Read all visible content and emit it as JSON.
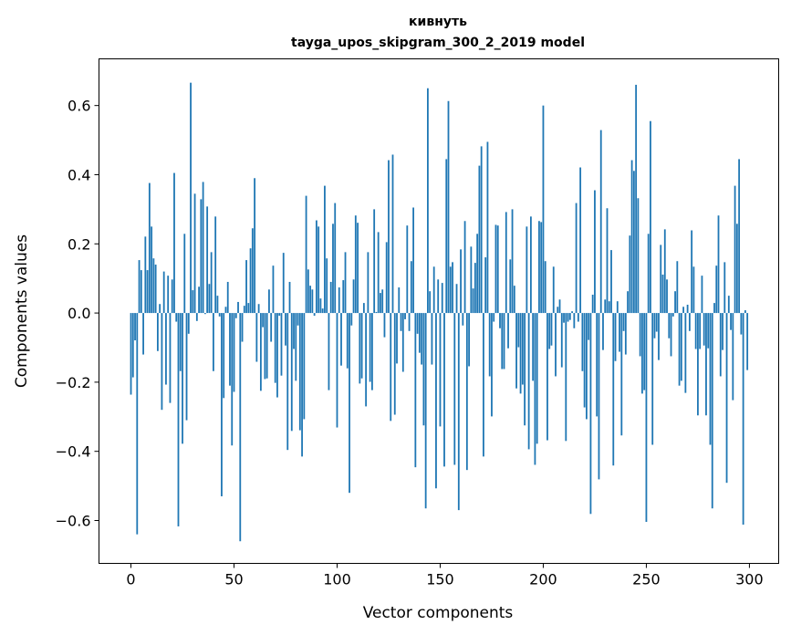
{
  "chart_data": {
    "type": "bar",
    "title_line1": "кивнуть",
    "title_line2": "tayga_upos_skipgram_300_2_2019 model",
    "xlabel": "Vector components",
    "ylabel": "Components values",
    "xlim": [
      -15.5,
      314.2
    ],
    "ylim": [
      -0.724,
      0.735
    ],
    "xticks": [
      0,
      50,
      100,
      150,
      200,
      250,
      300
    ],
    "xtick_labels": [
      "0",
      "50",
      "100",
      "150",
      "200",
      "250",
      "300"
    ],
    "yticks": [
      -0.6,
      -0.4,
      -0.2,
      0.0,
      0.2,
      0.4,
      0.6
    ],
    "ytick_labels": [
      "−0.6",
      "−0.4",
      "−0.2",
      "0.0",
      "0.2",
      "0.4",
      "0.6"
    ],
    "grid": false,
    "bar_color": "#1f77b4",
    "values": [
      -0.236,
      -0.186,
      -0.079,
      -0.64,
      0.153,
      0.124,
      -0.12,
      0.221,
      0.124,
      0.376,
      0.25,
      0.158,
      0.14,
      -0.11,
      0.026,
      -0.28,
      0.12,
      -0.207,
      0.108,
      -0.26,
      0.097,
      0.405,
      -0.025,
      -0.617,
      -0.168,
      -0.378,
      0.229,
      -0.31,
      -0.06,
      0.666,
      0.066,
      0.345,
      -0.023,
      0.076,
      0.329,
      0.379,
      -0.003,
      0.308,
      0.084,
      0.176,
      -0.168,
      0.279,
      0.05,
      -0.01,
      -0.53,
      -0.246,
      0.018,
      0.09,
      -0.21,
      -0.383,
      -0.228,
      -0.015,
      0.032,
      -0.66,
      -0.083,
      0.021,
      0.153,
      0.029,
      0.187,
      0.245,
      0.39,
      -0.141,
      0.026,
      -0.225,
      -0.041,
      -0.191,
      -0.189,
      0.068,
      -0.083,
      0.137,
      -0.202,
      -0.244,
      -0.008,
      -0.181,
      0.174,
      -0.094,
      -0.396,
      0.09,
      -0.341,
      -0.104,
      -0.196,
      -0.036,
      -0.339,
      -0.415,
      -0.307,
      0.339,
      0.126,
      0.079,
      0.068,
      -0.008,
      0.268,
      0.25,
      0.042,
      0.013,
      0.368,
      0.158,
      -0.223,
      0.09,
      0.258,
      0.318,
      -0.331,
      0.074,
      -0.152,
      0.095,
      0.176,
      -0.16,
      -0.52,
      -0.036,
      0.097,
      0.282,
      0.261,
      -0.204,
      -0.189,
      0.029,
      -0.27,
      0.176,
      -0.199,
      -0.223,
      0.3,
      0.003,
      0.234,
      0.058,
      0.068,
      -0.07,
      0.205,
      0.442,
      -0.312,
      0.458,
      -0.294,
      -0.146,
      0.074,
      -0.052,
      -0.17,
      -0.018,
      0.253,
      -0.052,
      0.15,
      0.305,
      -0.446,
      -0.06,
      -0.115,
      -0.149,
      -0.325,
      -0.565,
      0.65,
      0.063,
      -0.149,
      0.134,
      -0.507,
      0.097,
      -0.328,
      0.087,
      -0.444,
      0.445,
      0.613,
      0.134,
      0.147,
      -0.439,
      0.084,
      -0.57,
      0.184,
      -0.036,
      0.266,
      -0.454,
      -0.154,
      0.192,
      0.071,
      0.145,
      0.229,
      0.426,
      0.482,
      -0.415,
      0.161,
      0.495,
      -0.183,
      -0.299,
      -0.025,
      0.255,
      0.253,
      -0.044,
      -0.162,
      -0.162,
      0.292,
      -0.102,
      0.155,
      0.3,
      0.079,
      -0.218,
      -0.099,
      -0.233,
      -0.207,
      -0.325,
      0.25,
      -0.394,
      0.279,
      -0.196,
      -0.439,
      -0.378,
      0.266,
      0.263,
      0.6,
      0.15,
      -0.368,
      -0.104,
      -0.094,
      0.134,
      -0.183,
      0.018,
      0.039,
      -0.157,
      -0.028,
      -0.37,
      -0.025,
      -0.02,
      0.005,
      -0.044,
      0.318,
      -0.025,
      0.421,
      -0.168,
      -0.273,
      -0.307,
      -0.078,
      -0.581,
      0.053,
      0.355,
      -0.299,
      -0.481,
      0.529,
      -0.107,
      0.039,
      0.303,
      0.034,
      0.182,
      -0.441,
      -0.139,
      0.034,
      -0.112,
      -0.354,
      -0.052,
      -0.12,
      0.063,
      0.224,
      0.442,
      0.411,
      0.66,
      0.332,
      -0.125,
      -0.233,
      -0.223,
      -0.604,
      0.229,
      0.555,
      -0.381,
      -0.073,
      -0.054,
      -0.136,
      0.197,
      0.111,
      0.242,
      0.097,
      -0.073,
      -0.125,
      -0.01,
      0.063,
      0.15,
      -0.21,
      -0.196,
      0.018,
      -0.231,
      0.024,
      -0.052,
      0.239,
      0.134,
      -0.104,
      -0.296,
      -0.104,
      0.108,
      -0.094,
      -0.296,
      -0.102,
      -0.381,
      -0.565,
      0.029,
      0.137,
      0.282,
      -0.183,
      -0.107,
      0.147,
      -0.491,
      0.05,
      -0.049,
      -0.252,
      0.368,
      0.258,
      0.445,
      -0.062,
      -0.612,
      0.008,
      -0.165
    ]
  }
}
